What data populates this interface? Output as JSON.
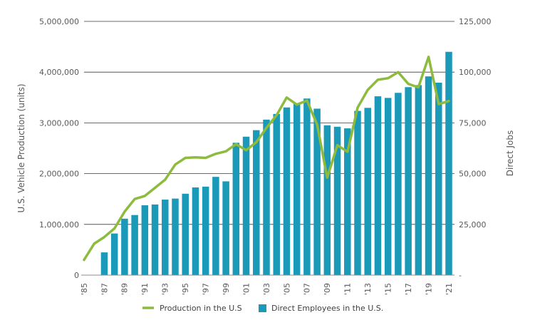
{
  "chart_data": {
    "type": "bar",
    "x": [
      "'85",
      "'86",
      "'87",
      "'88",
      "'89",
      "'90",
      "'91",
      "'92",
      "'93",
      "'94",
      "'95",
      "'96",
      "'97",
      "'98",
      "'99",
      "'00",
      "'01",
      "'02",
      "'03",
      "'04",
      "'05",
      "'06",
      "'07",
      "'08",
      "'09",
      "'10",
      "'11",
      "'12",
      "'13",
      "'14",
      "'15",
      "'16",
      "'17",
      "'18",
      "'19",
      "'20",
      "'21"
    ],
    "x_tick_labels": [
      "'85",
      "'87",
      "'89",
      "'91",
      "'93",
      "'95",
      "'97",
      "'99",
      "'01",
      "'03",
      "'05",
      "'07",
      "'09",
      "'11",
      "'13",
      "'15",
      "'17",
      "'19",
      "'21"
    ],
    "ylabel": "U.S. Vehicle Production (units)",
    "y2label": "Direct Jobs",
    "ylim": [
      0,
      5000000
    ],
    "y2lim": [
      0,
      125000
    ],
    "y_ticks": [
      "0",
      "1,000,000",
      "2,000,000",
      "3,000,000",
      "4,000,000",
      "5,000,000"
    ],
    "y2_ticks": [
      "-",
      "25,000",
      "50,000",
      "75,000",
      "100,000",
      "125,000"
    ],
    "grid": true,
    "legend_position": "bottom",
    "series": [
      {
        "name": "Production in the U.S",
        "type": "line",
        "axis": "left",
        "color": "#8dbb3d",
        "values": [
          300000,
          620000,
          750000,
          920000,
          1250000,
          1500000,
          1560000,
          1720000,
          1880000,
          2180000,
          2310000,
          2320000,
          2310000,
          2390000,
          2440000,
          2580000,
          2460000,
          2620000,
          2900000,
          3150000,
          3500000,
          3360000,
          3440000,
          2970000,
          1920000,
          2560000,
          2430000,
          3300000,
          3650000,
          3850000,
          3880000,
          4000000,
          3770000,
          3700000,
          4300000,
          3370000,
          3430000
        ]
      },
      {
        "name": "Direct Employees in the U.S.",
        "type": "bar",
        "axis": "right",
        "color": "#1a99b8",
        "values": [
          null,
          null,
          11200,
          20500,
          27800,
          29600,
          34400,
          34800,
          37200,
          37700,
          40100,
          43200,
          43600,
          48400,
          46200,
          65200,
          68200,
          71400,
          76600,
          79400,
          82600,
          84600,
          87000,
          82000,
          73800,
          73100,
          72300,
          80900,
          82400,
          88100,
          87300,
          89800,
          92600,
          93600,
          97900,
          94800,
          110000
        ]
      }
    ]
  }
}
